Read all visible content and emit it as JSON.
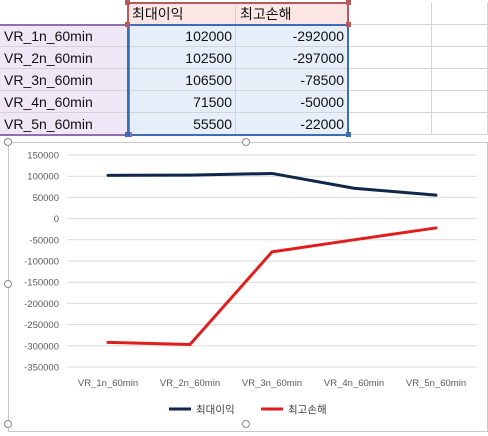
{
  "sheet": {
    "headers": [
      "",
      "최대이익",
      "최고손해"
    ],
    "rows": [
      {
        "label": "VR_1n_60min",
        "max_profit": "102000",
        "max_loss": "-292000"
      },
      {
        "label": "VR_2n_60min",
        "max_profit": "102500",
        "max_loss": "-297000"
      },
      {
        "label": "VR_3n_60min",
        "max_profit": "106500",
        "max_loss": "-78500"
      },
      {
        "label": "VR_4n_60min",
        "max_profit": "71500",
        "max_loss": "-50000"
      },
      {
        "label": "VR_5n_60min",
        "max_profit": "55500",
        "max_loss": "-22000"
      }
    ],
    "colors": {
      "row_range": "#8f6fb0",
      "header_range": "#b85a5a",
      "value_range": "#3d6eb5"
    }
  },
  "chart_data": {
    "type": "line",
    "categories": [
      "VR_1n_60min",
      "VR_2n_60min",
      "VR_3n_60min",
      "VR_4n_60min",
      "VR_5n_60min"
    ],
    "series": [
      {
        "name": "최대이익",
        "values": [
          102000,
          102500,
          106500,
          71500,
          55500
        ],
        "color": "#10264a"
      },
      {
        "name": "최고손해",
        "values": [
          -292000,
          -297000,
          -78500,
          -50000,
          -22000
        ],
        "color": "#e01e1e"
      }
    ],
    "yticks": [
      "150000",
      "100000",
      "50000",
      "0",
      "-50000",
      "-100000",
      "-150000",
      "-200000",
      "-250000",
      "-300000",
      "-350000"
    ],
    "ylim": [
      -350000,
      150000
    ],
    "grid": true,
    "legend": "bottom"
  }
}
